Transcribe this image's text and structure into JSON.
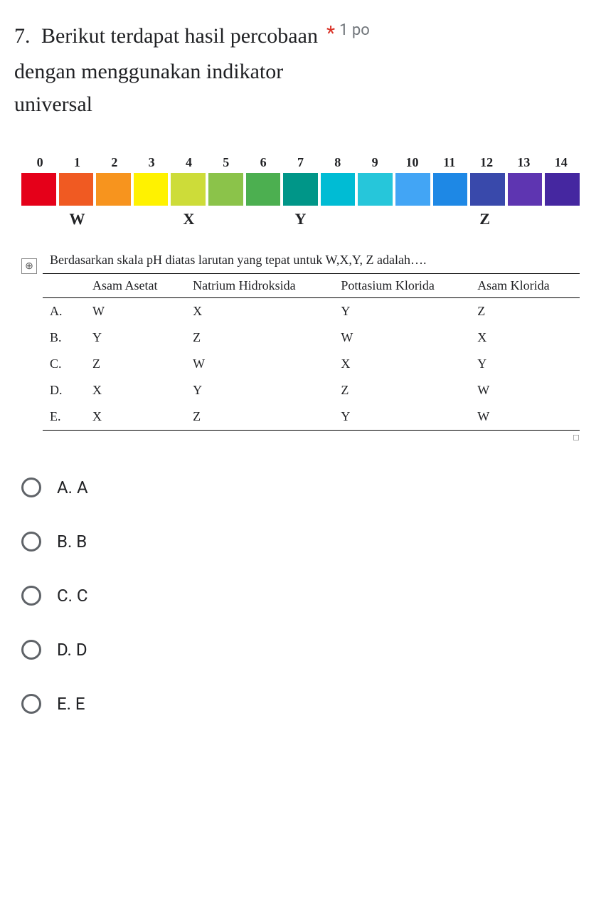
{
  "question": {
    "number": "7.",
    "line1": "Berikut terdapat hasil percobaan",
    "line2": "dengan menggunakan indikator",
    "line3": "universal",
    "required_mark": "*",
    "points_label": "1 po"
  },
  "ph_scale": {
    "numbers": [
      "0",
      "1",
      "2",
      "3",
      "4",
      "5",
      "6",
      "7",
      "8",
      "9",
      "10",
      "11",
      "12",
      "13",
      "14"
    ],
    "colors": [
      "#e50019",
      "#f05a22",
      "#f7941e",
      "#fff200",
      "#cddc39",
      "#8bc34a",
      "#4caf50",
      "#009688",
      "#00bcd4",
      "#26c6da",
      "#42a5f5",
      "#1e88e5",
      "#3949ab",
      "#5e35b1",
      "#4527a0"
    ],
    "labels": [
      {
        "text": "W",
        "pos_pct": 10
      },
      {
        "text": "X",
        "pos_pct": 30
      },
      {
        "text": "Y",
        "pos_pct": 50
      },
      {
        "text": "Z",
        "pos_pct": 83
      }
    ]
  },
  "table": {
    "prompt": "Berdasarkan skala pH diatas larutan yang tepat untuk W,X,Y, Z adalah….",
    "anchor_symbol": "⊕",
    "headers": [
      "",
      "Asam Asetat",
      "Natrium Hidroksida",
      "Pottasium Klorida",
      "Asam Klorida"
    ],
    "rows": [
      {
        "key": "A.",
        "cells": [
          "W",
          "X",
          "Y",
          "Z"
        ]
      },
      {
        "key": "B.",
        "cells": [
          "Y",
          "Z",
          "W",
          "X"
        ]
      },
      {
        "key": "C.",
        "cells": [
          "Z",
          "W",
          "X",
          "Y"
        ]
      },
      {
        "key": "D.",
        "cells": [
          "X",
          "Y",
          "Z",
          "W"
        ]
      },
      {
        "key": "E.",
        "cells": [
          "X",
          "Z",
          "Y",
          "W"
        ]
      }
    ],
    "corner_mark": "◻"
  },
  "options": [
    {
      "label": "A. A"
    },
    {
      "label": "B. B"
    },
    {
      "label": "C. C"
    },
    {
      "label": "D. D"
    },
    {
      "label": "E. E"
    }
  ]
}
